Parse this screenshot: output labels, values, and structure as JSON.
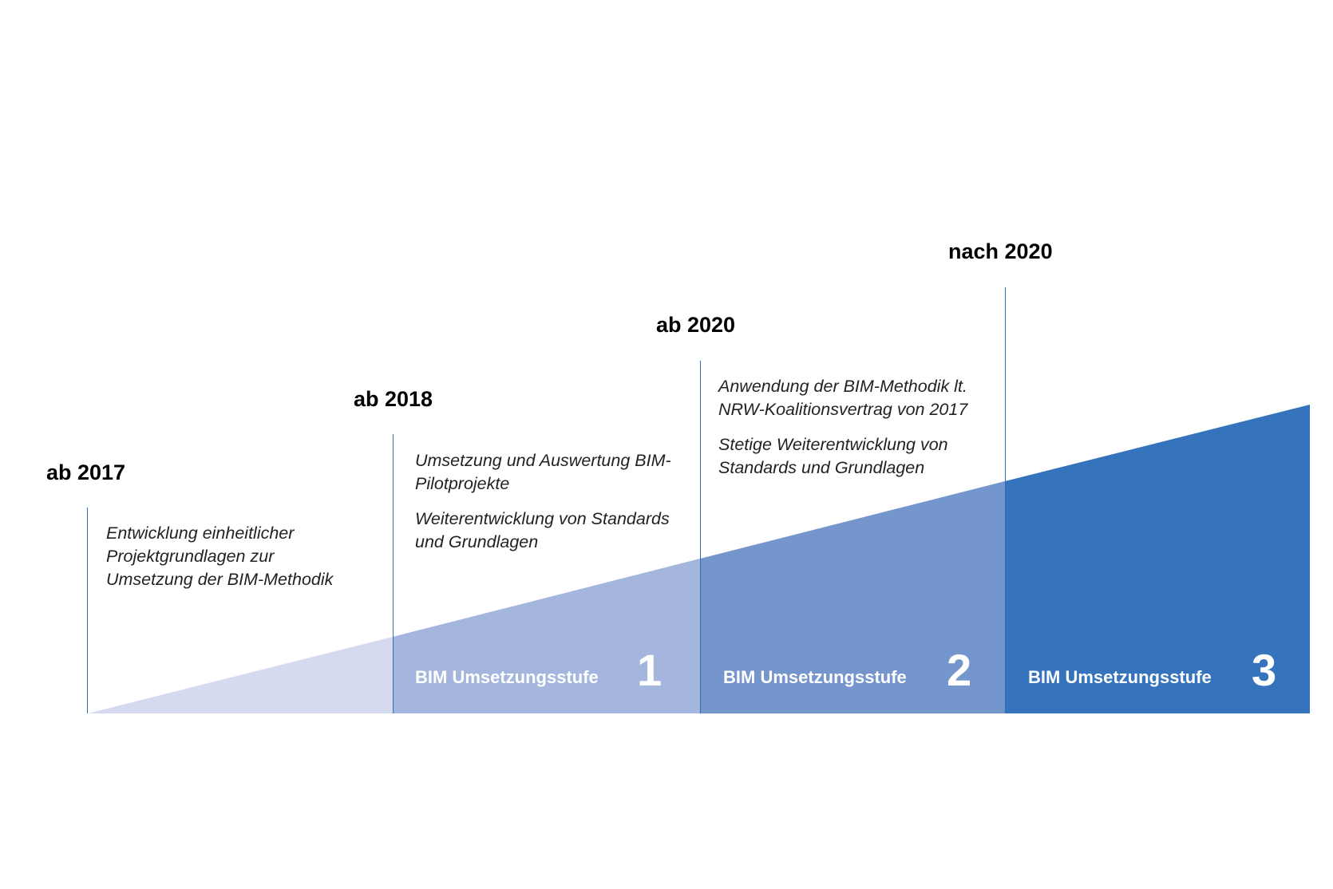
{
  "colors": {
    "line": "#2f6db5",
    "segment_0": "#d5daf0",
    "segment_1": "#a4b6de",
    "segment_2": "#7596cd",
    "segment_3": "#3574bd"
  },
  "milestones": [
    {
      "year": "ab 2017",
      "texts": [
        "Entwicklung einheitlicher Projektgrundlagen zur Umsetzung der BIM-Methodik"
      ]
    },
    {
      "year": "ab 2018",
      "texts": [
        "Umsetzung und Auswertung BIM-Pilotprojekte",
        "Weiterentwicklung von Standards und Grundlagen"
      ]
    },
    {
      "year": "ab 2020",
      "texts": [
        "Anwendung der BIM-Methodik lt. NRW-Koalitionsvertrag von 2017",
        "Stetige Weiterentwicklung von Standards und Grundlagen"
      ]
    },
    {
      "year": "nach 2020",
      "texts": []
    }
  ],
  "stages": [
    {
      "label": "BIM Umsetzungsstufe",
      "number": "1"
    },
    {
      "label": "BIM Umsetzungsstufe",
      "number": "2"
    },
    {
      "label": "BIM Umsetzungsstufe",
      "number": "3"
    }
  ]
}
